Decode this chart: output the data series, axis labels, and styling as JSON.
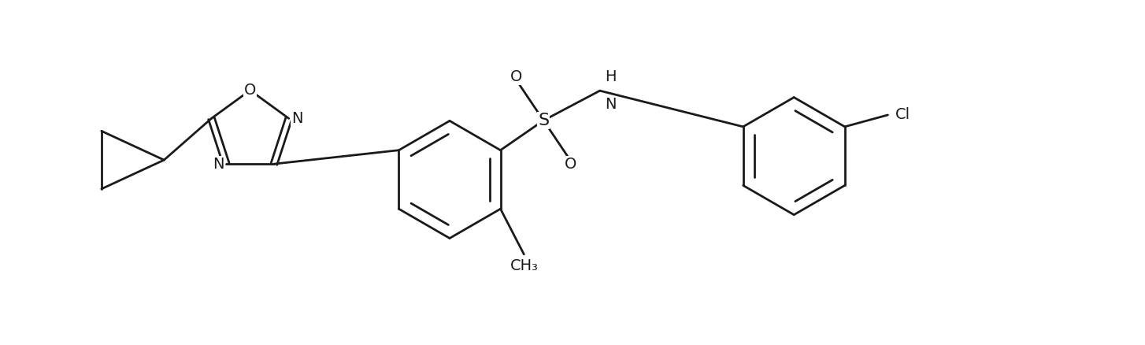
{
  "background_color": "#ffffff",
  "line_color": "#1a1a1a",
  "line_width": 2.0,
  "font_size": 14,
  "bold_font_size": 14,
  "figsize": [
    14.54,
    4.38
  ],
  "dpi": 100,
  "xlim": [
    0,
    14.54
  ],
  "ylim": [
    0,
    4.38
  ]
}
